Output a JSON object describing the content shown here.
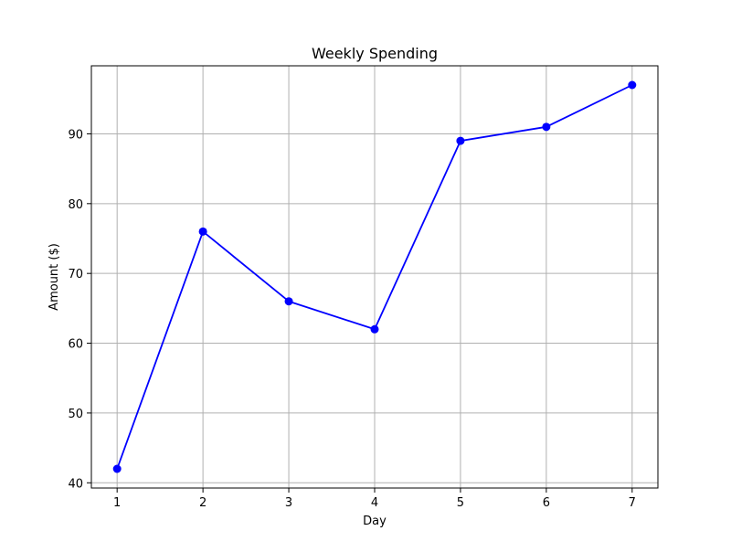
{
  "chart_data": {
    "type": "line",
    "title": "Weekly Spending",
    "xlabel": "Day",
    "ylabel": "Amount ($)",
    "x": [
      1,
      2,
      3,
      4,
      5,
      6,
      7
    ],
    "series": [
      {
        "values": [
          42,
          76,
          66,
          62,
          89,
          91,
          97
        ],
        "color": "#0000ff",
        "marker": "circle"
      }
    ],
    "xticks": [
      1,
      2,
      3,
      4,
      5,
      6,
      7
    ],
    "yticks": [
      40,
      50,
      60,
      70,
      80,
      90
    ],
    "xlim": [
      0.7,
      7.3
    ],
    "ylim": [
      39.25,
      99.75
    ],
    "grid": true
  }
}
